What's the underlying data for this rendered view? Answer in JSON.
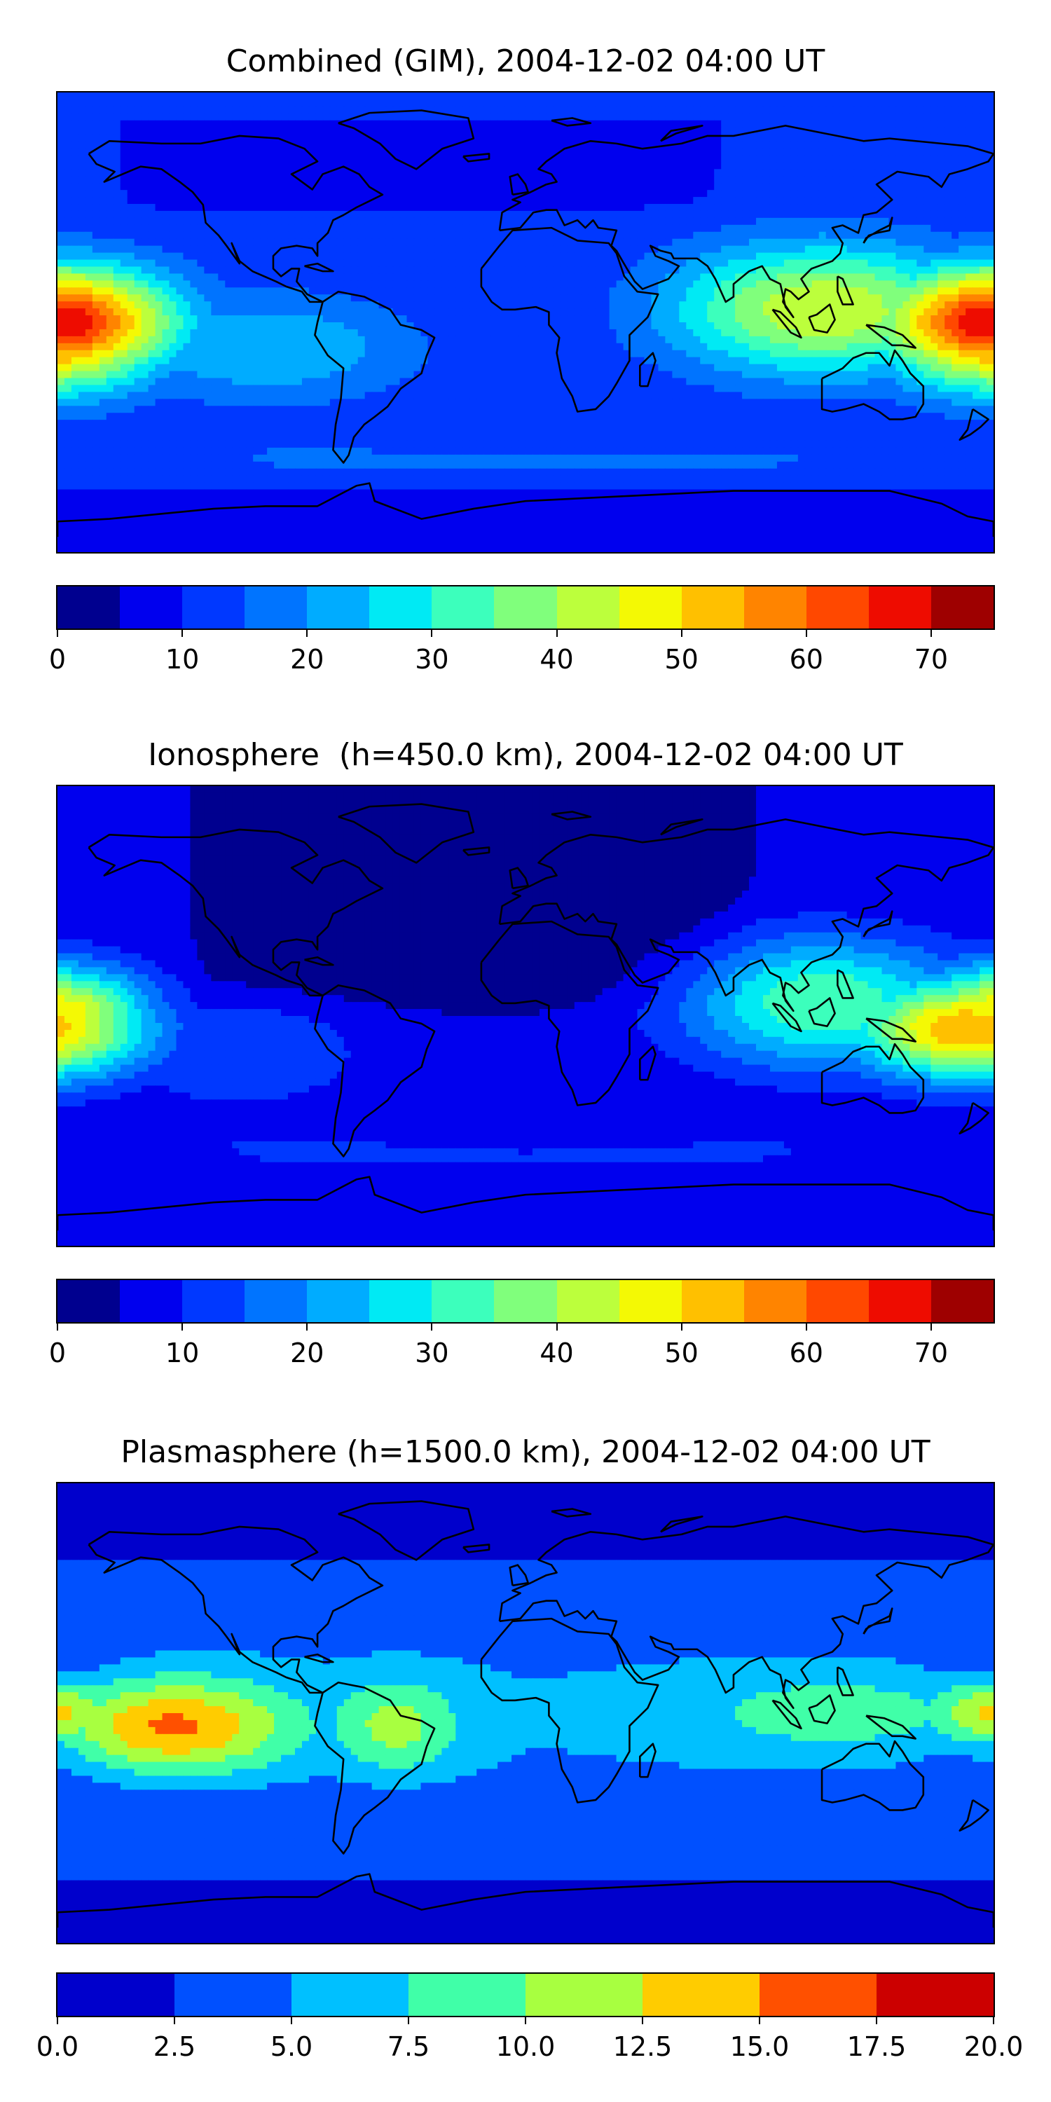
{
  "panels": [
    {
      "title": "Combined (GIM), 2004-12-02 04:00 UT",
      "colorbar": {
        "min": 0,
        "max": 75,
        "step": 5,
        "colors": [
          "#00008f",
          "#0000ee",
          "#0038ff",
          "#0074ff",
          "#00acff",
          "#00eaf4",
          "#3cffbc",
          "#80ff7c",
          "#bcff3c",
          "#f4f904",
          "#ffc000",
          "#ff8400",
          "#ff4800",
          "#ee0c00",
          "#9e0000"
        ],
        "ticks": [
          "0",
          "10",
          "20",
          "30",
          "40",
          "50",
          "60",
          "70"
        ],
        "tick_values": [
          0,
          10,
          20,
          30,
          40,
          50,
          60,
          70
        ]
      },
      "map_data": {
        "background_level": 10,
        "features": [
          {
            "kind": "band",
            "lat_center": 62,
            "lat_halfwidth": 18,
            "lon_center": -40,
            "lon_halfwidth": 115,
            "level": 5
          },
          {
            "kind": "band",
            "lat_center": -55,
            "lat_halfwidth": 10,
            "lon_center": 0,
            "lon_halfwidth": 180,
            "level": 15
          },
          {
            "kind": "band",
            "lat_center": -78,
            "lat_halfwidth": 12,
            "lon_center": 0,
            "lon_halfwidth": 180,
            "level": 5
          },
          {
            "kind": "peak",
            "lat": 0,
            "lon": 180,
            "max": 70,
            "lat_spread": 22,
            "lon_spread": 45
          },
          {
            "kind": "peak",
            "lat": -5,
            "lon": -180,
            "max": 60,
            "lat_spread": 22,
            "lon_spread": 40
          },
          {
            "kind": "peak",
            "lat": 5,
            "lon": 115,
            "max": 45,
            "lat_spread": 26,
            "lon_spread": 60
          },
          {
            "kind": "peak",
            "lat": -10,
            "lon": -100,
            "max": 25,
            "lat_spread": 22,
            "lon_spread": 60
          },
          {
            "kind": "peak",
            "lat": 0,
            "lon": -55,
            "max": 15,
            "lat_spread": 25,
            "lon_spread": 40
          }
        ]
      }
    },
    {
      "title": "Ionosphere  (h=450.0 km), 2004-12-02 04:00 UT",
      "colorbar": {
        "min": 0,
        "max": 75,
        "step": 5,
        "colors": [
          "#00008f",
          "#0000ee",
          "#0038ff",
          "#0074ff",
          "#00acff",
          "#00eaf4",
          "#3cffbc",
          "#80ff7c",
          "#bcff3c",
          "#f4f904",
          "#ffc000",
          "#ff8400",
          "#ff4800",
          "#ee0c00",
          "#9e0000"
        ],
        "ticks": [
          "0",
          "10",
          "20",
          "30",
          "40",
          "50",
          "60",
          "70"
        ],
        "tick_values": [
          0,
          10,
          20,
          30,
          40,
          50,
          60,
          70
        ]
      },
      "map_data": {
        "background_level": 5,
        "features": [
          {
            "kind": "band",
            "lat_center": 45,
            "lat_halfwidth": 45,
            "lon_center": -20,
            "lon_halfwidth": 110,
            "level": 0
          },
          {
            "kind": "band",
            "lat_center": -55,
            "lat_halfwidth": 12,
            "lon_center": 0,
            "lon_halfwidth": 180,
            "level": 10
          },
          {
            "kind": "peak",
            "lat": -5,
            "lon": 170,
            "max": 55,
            "lat_spread": 20,
            "lon_spread": 45
          },
          {
            "kind": "peak",
            "lat": 0,
            "lon": -180,
            "max": 50,
            "lat_spread": 20,
            "lon_spread": 35
          },
          {
            "kind": "peak",
            "lat": 5,
            "lon": 115,
            "max": 35,
            "lat_spread": 26,
            "lon_spread": 55
          },
          {
            "kind": "peak",
            "lat": -15,
            "lon": -110,
            "max": 15,
            "lat_spread": 22,
            "lon_spread": 50
          }
        ]
      }
    },
    {
      "title": "Plasmasphere (h=1500.0 km), 2004-12-02 04:00 UT",
      "colorbar": {
        "min": 0,
        "max": 20,
        "step": 2.5,
        "colors": [
          "#0000cc",
          "#0050ff",
          "#00c0ff",
          "#40ffa8",
          "#a8ff40",
          "#ffcc00",
          "#ff5000",
          "#cc0000"
        ],
        "ticks": [
          "0.0",
          "2.5",
          "5.0",
          "7.5",
          "10.0",
          "12.5",
          "15.0",
          "17.5",
          "20.0"
        ],
        "tick_values": [
          0,
          2.5,
          5,
          7.5,
          10,
          12.5,
          15,
          17.5,
          20
        ]
      },
      "map_data": {
        "background_level": 2.5,
        "features": [
          {
            "kind": "band",
            "lat_center": 0,
            "lat_halfwidth": 35,
            "lon_center": 0,
            "lon_halfwidth": 180,
            "level": 5
          },
          {
            "kind": "band",
            "lat_center": 75,
            "lat_halfwidth": 15,
            "lon_center": 0,
            "lon_halfwidth": 180,
            "level": 0
          },
          {
            "kind": "band",
            "lat_center": -78,
            "lat_halfwidth": 12,
            "lon_center": 0,
            "lon_halfwidth": 180,
            "level": 0
          },
          {
            "kind": "peak",
            "lat": -5,
            "lon": -135,
            "max": 15.5,
            "lat_spread": 18,
            "lon_spread": 45
          },
          {
            "kind": "peak",
            "lat": -5,
            "lon": -50,
            "max": 11,
            "lat_spread": 18,
            "lon_spread": 25
          },
          {
            "kind": "peak",
            "lat": 0,
            "lon": 120,
            "max": 9,
            "lat_spread": 16,
            "lon_spread": 60
          },
          {
            "kind": "peak",
            "lat": 0,
            "lon": 180,
            "max": 13,
            "lat_spread": 14,
            "lon_spread": 25
          }
        ]
      }
    }
  ]
}
